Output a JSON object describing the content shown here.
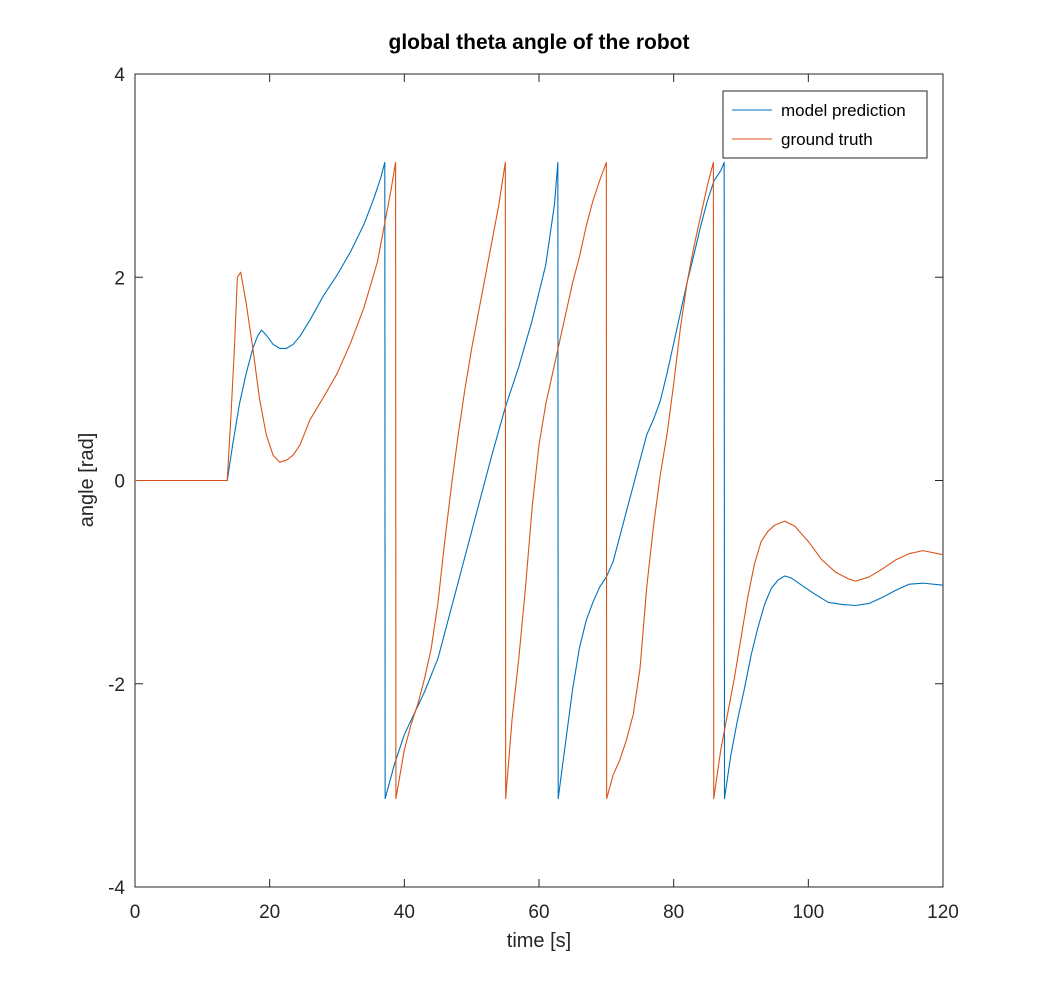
{
  "chart_data": {
    "type": "line",
    "title": "global theta angle of the robot",
    "xlabel": "time [s]",
    "ylabel": "angle [rad]",
    "xlim": [
      0,
      120
    ],
    "ylim": [
      -4,
      4
    ],
    "xticks": [
      0,
      20,
      40,
      60,
      80,
      100,
      120
    ],
    "yticks": [
      -4,
      -2,
      0,
      2,
      4
    ],
    "xtick_labels": [
      "0",
      "20",
      "40",
      "60",
      "80",
      "100",
      "120"
    ],
    "ytick_labels": [
      "-4",
      "-2",
      "0",
      "2",
      "4"
    ],
    "grid": false,
    "legend_position": "top-right",
    "series": [
      {
        "name": "model prediction",
        "color": "#0072BD",
        "points": [
          [
            0,
            0
          ],
          [
            13.7,
            0
          ],
          [
            14.5,
            0.35
          ],
          [
            15.5,
            0.75
          ],
          [
            16.5,
            1.05
          ],
          [
            17.5,
            1.3
          ],
          [
            18.2,
            1.42
          ],
          [
            18.8,
            1.48
          ],
          [
            19.5,
            1.43
          ],
          [
            20.5,
            1.34
          ],
          [
            21.5,
            1.3
          ],
          [
            22.5,
            1.3
          ],
          [
            23.5,
            1.34
          ],
          [
            24.5,
            1.42
          ],
          [
            26,
            1.58
          ],
          [
            28,
            1.82
          ],
          [
            30,
            2.02
          ],
          [
            32,
            2.25
          ],
          [
            34,
            2.52
          ],
          [
            35.5,
            2.78
          ],
          [
            36.5,
            2.98
          ],
          [
            37.1,
            3.13
          ],
          [
            37.15,
            -3.13
          ],
          [
            38.5,
            -2.8
          ],
          [
            40,
            -2.5
          ],
          [
            42,
            -2.22
          ],
          [
            43,
            -2.08
          ],
          [
            45,
            -1.75
          ],
          [
            47,
            -1.25
          ],
          [
            49,
            -0.75
          ],
          [
            51,
            -0.25
          ],
          [
            53,
            0.25
          ],
          [
            55,
            0.72
          ],
          [
            57,
            1.12
          ],
          [
            59,
            1.58
          ],
          [
            61,
            2.12
          ],
          [
            62.3,
            2.72
          ],
          [
            62.8,
            3.13
          ],
          [
            62.85,
            -3.13
          ],
          [
            64,
            -2.55
          ],
          [
            65,
            -2.05
          ],
          [
            66,
            -1.65
          ],
          [
            67,
            -1.38
          ],
          [
            68,
            -1.2
          ],
          [
            69,
            -1.05
          ],
          [
            70,
            -0.95
          ],
          [
            71,
            -0.8
          ],
          [
            72,
            -0.55
          ],
          [
            73,
            -0.3
          ],
          [
            74,
            -0.05
          ],
          [
            75,
            0.2
          ],
          [
            76,
            0.45
          ],
          [
            77,
            0.6
          ],
          [
            78,
            0.78
          ],
          [
            79,
            1.05
          ],
          [
            80,
            1.35
          ],
          [
            81,
            1.65
          ],
          [
            82,
            1.95
          ],
          [
            83,
            2.22
          ],
          [
            84,
            2.5
          ],
          [
            85,
            2.75
          ],
          [
            86,
            2.95
          ],
          [
            87,
            3.05
          ],
          [
            87.5,
            3.13
          ],
          [
            87.55,
            -3.13
          ],
          [
            88.5,
            -2.7
          ],
          [
            89.5,
            -2.35
          ],
          [
            90.5,
            -2.05
          ],
          [
            91.5,
            -1.72
          ],
          [
            92.5,
            -1.45
          ],
          [
            93.5,
            -1.22
          ],
          [
            94.5,
            -1.06
          ],
          [
            95.5,
            -0.98
          ],
          [
            96.5,
            -0.94
          ],
          [
            97.5,
            -0.96
          ],
          [
            99,
            -1.03
          ],
          [
            101,
            -1.12
          ],
          [
            103,
            -1.2
          ],
          [
            105,
            -1.22
          ],
          [
            107,
            -1.23
          ],
          [
            109,
            -1.21
          ],
          [
            111,
            -1.15
          ],
          [
            113,
            -1.08
          ],
          [
            115,
            -1.02
          ],
          [
            117,
            -1.01
          ],
          [
            120,
            -1.03
          ]
        ]
      },
      {
        "name": "ground truth",
        "color": "#D95319",
        "points": [
          [
            0,
            0
          ],
          [
            13.7,
            0
          ],
          [
            14.3,
            0.7
          ],
          [
            14.8,
            1.35
          ],
          [
            15.2,
            2.0
          ],
          [
            15.7,
            2.05
          ],
          [
            16.5,
            1.75
          ],
          [
            17.5,
            1.3
          ],
          [
            18.5,
            0.8
          ],
          [
            19.5,
            0.45
          ],
          [
            20.5,
            0.25
          ],
          [
            21.5,
            0.18
          ],
          [
            22.5,
            0.2
          ],
          [
            23.5,
            0.25
          ],
          [
            24.5,
            0.35
          ],
          [
            26,
            0.6
          ],
          [
            28,
            0.82
          ],
          [
            30,
            1.05
          ],
          [
            32,
            1.35
          ],
          [
            34,
            1.7
          ],
          [
            36,
            2.15
          ],
          [
            37,
            2.5
          ],
          [
            38,
            2.85
          ],
          [
            38.7,
            3.13
          ],
          [
            38.75,
            -3.13
          ],
          [
            40,
            -2.65
          ],
          [
            41,
            -2.4
          ],
          [
            42,
            -2.2
          ],
          [
            43,
            -1.95
          ],
          [
            44,
            -1.65
          ],
          [
            45,
            -1.2
          ],
          [
            46,
            -0.6
          ],
          [
            47,
            -0.05
          ],
          [
            48,
            0.45
          ],
          [
            49,
            0.9
          ],
          [
            50,
            1.3
          ],
          [
            51,
            1.65
          ],
          [
            52,
            2.0
          ],
          [
            53,
            2.35
          ],
          [
            54,
            2.7
          ],
          [
            55,
            3.13
          ],
          [
            55.05,
            -3.13
          ],
          [
            56,
            -2.35
          ],
          [
            57,
            -1.75
          ],
          [
            58,
            -1.05
          ],
          [
            59,
            -0.25
          ],
          [
            60,
            0.35
          ],
          [
            61,
            0.75
          ],
          [
            62,
            1.05
          ],
          [
            63,
            1.35
          ],
          [
            64,
            1.65
          ],
          [
            65,
            1.95
          ],
          [
            66,
            2.2
          ],
          [
            67,
            2.5
          ],
          [
            68,
            2.75
          ],
          [
            69,
            2.95
          ],
          [
            70,
            3.13
          ],
          [
            70.05,
            -3.13
          ],
          [
            71,
            -2.9
          ],
          [
            72,
            -2.75
          ],
          [
            73,
            -2.55
          ],
          [
            74,
            -2.3
          ],
          [
            75,
            -1.85
          ],
          [
            76,
            -1.05
          ],
          [
            77,
            -0.45
          ],
          [
            78,
            0.05
          ],
          [
            79,
            0.45
          ],
          [
            80,
            0.95
          ],
          [
            81,
            1.5
          ],
          [
            82,
            1.95
          ],
          [
            83,
            2.3
          ],
          [
            84,
            2.6
          ],
          [
            85,
            2.9
          ],
          [
            85.9,
            3.13
          ],
          [
            85.95,
            -3.13
          ],
          [
            87,
            -2.65
          ],
          [
            88,
            -2.3
          ],
          [
            89,
            -1.95
          ],
          [
            90,
            -1.55
          ],
          [
            91,
            -1.15
          ],
          [
            92,
            -0.82
          ],
          [
            93,
            -0.6
          ],
          [
            94,
            -0.5
          ],
          [
            95,
            -0.44
          ],
          [
            96.5,
            -0.4
          ],
          [
            98,
            -0.45
          ],
          [
            100,
            -0.6
          ],
          [
            102,
            -0.78
          ],
          [
            104,
            -0.9
          ],
          [
            106,
            -0.97
          ],
          [
            107,
            -0.99
          ],
          [
            109,
            -0.95
          ],
          [
            111,
            -0.87
          ],
          [
            113,
            -0.78
          ],
          [
            115,
            -0.72
          ],
          [
            117,
            -0.69
          ],
          [
            120,
            -0.73
          ]
        ]
      }
    ]
  }
}
